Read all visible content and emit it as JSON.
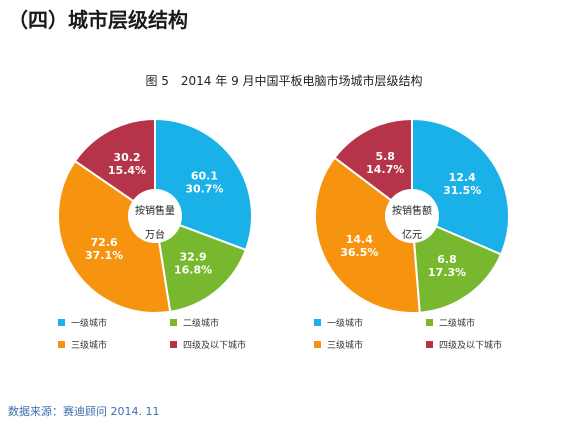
{
  "section_title": "（四）城市层级结构",
  "figure_caption": "图 5　2014 年 9 月中国平板电脑市场城市层级结构",
  "source": "数据来源：赛迪顾问 2014. 11",
  "colors": {
    "tier1": "#1ab0e8",
    "tier2": "#77b82f",
    "tier3": "#f7940f",
    "tier4": "#b5344a"
  },
  "chart_data": [
    {
      "type": "pie",
      "center_label_line1": "按销售量",
      "center_label_line2": "万台",
      "slices": [
        {
          "name": "一级城市",
          "value": 60.1,
          "percent": "30.7%",
          "value_label": "60.1"
        },
        {
          "name": "二级城市",
          "value": 32.9,
          "percent": "16.8%",
          "value_label": "32.9"
        },
        {
          "name": "三级城市",
          "value": 72.6,
          "percent": "37.1%",
          "value_label": "72.6"
        },
        {
          "name": "四级及以下城市",
          "value": 30.2,
          "percent": "15.4%",
          "value_label": "30.2"
        }
      ]
    },
    {
      "type": "pie",
      "center_label_line1": "按销售额",
      "center_label_line2": "亿元",
      "slices": [
        {
          "name": "一级城市",
          "value": 12.4,
          "percent": "31.5%",
          "value_label": "12.4"
        },
        {
          "name": "二级城市",
          "value": 6.8,
          "percent": "17.3%",
          "value_label": "6.8"
        },
        {
          "name": "三级城市",
          "value": 14.4,
          "percent": "36.5%",
          "value_label": "14.4"
        },
        {
          "name": "四级及以下城市",
          "value": 5.8,
          "percent": "14.7%",
          "value_label": "5.8"
        }
      ]
    }
  ],
  "legend": [
    {
      "label": "一级城市"
    },
    {
      "label": "二级城市"
    },
    {
      "label": "三级城市"
    },
    {
      "label": "四级及以下城市"
    }
  ]
}
